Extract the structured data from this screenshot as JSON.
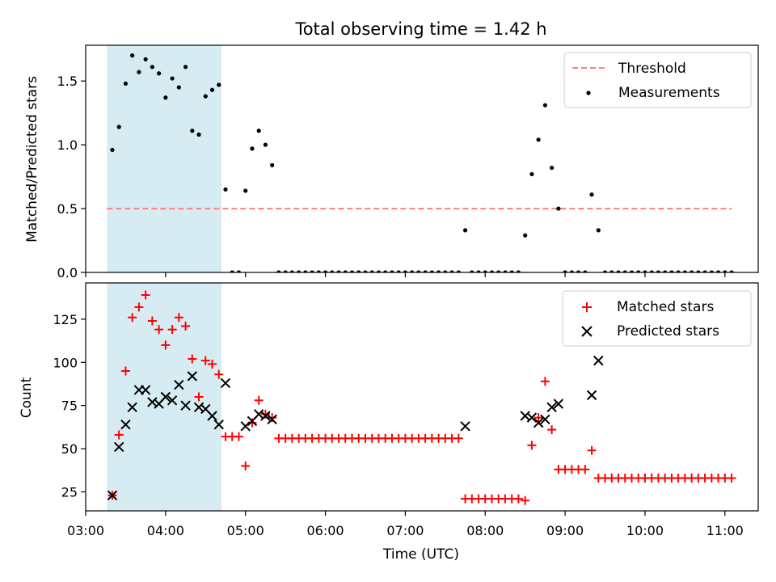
{
  "figure": {
    "title": "Total observing time = 1.42 h"
  },
  "colors": {
    "threshold": "#ff7f7f",
    "measurement": "#000000",
    "matched": "#ff0000",
    "predicted": "#000000",
    "shade": "#add8e6"
  },
  "chart_data": [
    {
      "type": "scatter",
      "title": "Total observing time = 1.42 h",
      "xlabel": "",
      "ylabel": "Matched/Predicted stars",
      "xlim": [
        "03:00",
        "11:25"
      ],
      "ylim": [
        0,
        1.78
      ],
      "yticks": [
        "0.0",
        "0.5",
        "1.0",
        "1.5"
      ],
      "legend": {
        "position": "upper right"
      },
      "shaded_interval": {
        "x": [
          "03:16",
          "04:42"
        ]
      },
      "threshold": {
        "name": "Threshold",
        "y": 0.5,
        "x": [
          "03:16",
          "11:05"
        ],
        "style": "dashed"
      },
      "series": [
        {
          "name": "Measurements",
          "marker": "dot",
          "points": [
            [
              "03:20",
              0.96
            ],
            [
              "03:25",
              1.14
            ],
            [
              "03:30",
              1.48
            ],
            [
              "03:35",
              1.7
            ],
            [
              "03:40",
              1.57
            ],
            [
              "03:45",
              1.67
            ],
            [
              "03:50",
              1.61
            ],
            [
              "03:55",
              1.56
            ],
            [
              "04:00",
              1.37
            ],
            [
              "04:05",
              1.52
            ],
            [
              "04:10",
              1.45
            ],
            [
              "04:15",
              1.61
            ],
            [
              "04:20",
              1.11
            ],
            [
              "04:25",
              1.08
            ],
            [
              "04:30",
              1.38
            ],
            [
              "04:35",
              1.43
            ],
            [
              "04:40",
              1.47
            ],
            [
              "04:45",
              0.65
            ],
            [
              "04:50",
              0
            ],
            [
              "04:55",
              0
            ],
            [
              "05:00",
              0.64
            ],
            [
              "05:05",
              0.97
            ],
            [
              "05:10",
              1.11
            ],
            [
              "05:15",
              1.0
            ],
            [
              "05:20",
              0.84
            ],
            [
              "05:25",
              0
            ],
            [
              "05:30",
              0
            ],
            [
              "05:35",
              0
            ],
            [
              "05:40",
              0
            ],
            [
              "05:45",
              0
            ],
            [
              "05:50",
              0
            ],
            [
              "05:55",
              0
            ],
            [
              "06:00",
              0
            ],
            [
              "06:05",
              0
            ],
            [
              "06:10",
              0
            ],
            [
              "06:15",
              0
            ],
            [
              "06:20",
              0
            ],
            [
              "06:25",
              0
            ],
            [
              "06:30",
              0
            ],
            [
              "06:35",
              0
            ],
            [
              "06:40",
              0
            ],
            [
              "06:45",
              0
            ],
            [
              "06:50",
              0
            ],
            [
              "06:55",
              0
            ],
            [
              "07:00",
              0
            ],
            [
              "07:05",
              0
            ],
            [
              "07:10",
              0
            ],
            [
              "07:15",
              0
            ],
            [
              "07:20",
              0
            ],
            [
              "07:25",
              0
            ],
            [
              "07:30",
              0
            ],
            [
              "07:35",
              0
            ],
            [
              "07:40",
              0
            ],
            [
              "07:45",
              0.33
            ],
            [
              "07:50",
              0
            ],
            [
              "07:55",
              0
            ],
            [
              "08:00",
              0
            ],
            [
              "08:05",
              0
            ],
            [
              "08:10",
              0
            ],
            [
              "08:15",
              0
            ],
            [
              "08:20",
              0
            ],
            [
              "08:25",
              0
            ],
            [
              "08:30",
              0.29
            ],
            [
              "08:35",
              0.77
            ],
            [
              "08:40",
              1.04
            ],
            [
              "08:45",
              1.31
            ],
            [
              "08:50",
              0.82
            ],
            [
              "08:55",
              0.5
            ],
            [
              "09:00",
              0
            ],
            [
              "09:05",
              0
            ],
            [
              "09:10",
              0
            ],
            [
              "09:15",
              0
            ],
            [
              "09:20",
              0.61
            ],
            [
              "09:25",
              0.33
            ],
            [
              "09:30",
              0
            ],
            [
              "09:35",
              0
            ],
            [
              "09:40",
              0
            ],
            [
              "09:45",
              0
            ],
            [
              "09:50",
              0
            ],
            [
              "09:55",
              0
            ],
            [
              "10:00",
              0
            ],
            [
              "10:05",
              0
            ],
            [
              "10:10",
              0
            ],
            [
              "10:15",
              0
            ],
            [
              "10:20",
              0
            ],
            [
              "10:25",
              0
            ],
            [
              "10:30",
              0
            ],
            [
              "10:35",
              0
            ],
            [
              "10:40",
              0
            ],
            [
              "10:45",
              0
            ],
            [
              "10:50",
              0
            ],
            [
              "10:55",
              0
            ],
            [
              "11:00",
              0
            ],
            [
              "11:05",
              0
            ]
          ]
        }
      ]
    },
    {
      "type": "scatter",
      "title": "",
      "xlabel": "Time (UTC)",
      "ylabel": "Count",
      "xlim": [
        "03:00",
        "11:25"
      ],
      "ylim": [
        14,
        146
      ],
      "xticks": [
        "03:00",
        "04:00",
        "05:00",
        "06:00",
        "07:00",
        "08:00",
        "09:00",
        "10:00",
        "11:00"
      ],
      "yticks": [
        "25",
        "50",
        "75",
        "100",
        "125"
      ],
      "legend": {
        "position": "upper right"
      },
      "shaded_interval": {
        "x": [
          "03:16",
          "04:42"
        ]
      },
      "series": [
        {
          "name": "Matched stars",
          "marker": "plus",
          "points": [
            [
              "03:20",
              23
            ],
            [
              "03:25",
              58
            ],
            [
              "03:30",
              95
            ],
            [
              "03:35",
              126
            ],
            [
              "03:40",
              132
            ],
            [
              "03:45",
              139
            ],
            [
              "03:50",
              124
            ],
            [
              "03:55",
              119
            ],
            [
              "04:00",
              110
            ],
            [
              "04:05",
              119
            ],
            [
              "04:10",
              126
            ],
            [
              "04:15",
              121
            ],
            [
              "04:20",
              102
            ],
            [
              "04:25",
              80
            ],
            [
              "04:30",
              101
            ],
            [
              "04:35",
              99
            ],
            [
              "04:40",
              93
            ],
            [
              "04:45",
              57
            ],
            [
              "04:50",
              57
            ],
            [
              "04:55",
              57
            ],
            [
              "05:00",
              40
            ],
            [
              "05:05",
              65
            ],
            [
              "05:10",
              78
            ],
            [
              "05:15",
              70
            ],
            [
              "05:20",
              68
            ],
            [
              "05:25",
              56
            ],
            [
              "05:30",
              56
            ],
            [
              "05:35",
              56
            ],
            [
              "05:40",
              56
            ],
            [
              "05:45",
              56
            ],
            [
              "05:50",
              56
            ],
            [
              "05:55",
              56
            ],
            [
              "06:00",
              56
            ],
            [
              "06:05",
              56
            ],
            [
              "06:10",
              56
            ],
            [
              "06:15",
              56
            ],
            [
              "06:20",
              56
            ],
            [
              "06:25",
              56
            ],
            [
              "06:30",
              56
            ],
            [
              "06:35",
              56
            ],
            [
              "06:40",
              56
            ],
            [
              "06:45",
              56
            ],
            [
              "06:50",
              56
            ],
            [
              "06:55",
              56
            ],
            [
              "07:00",
              56
            ],
            [
              "07:05",
              56
            ],
            [
              "07:10",
              56
            ],
            [
              "07:15",
              56
            ],
            [
              "07:20",
              56
            ],
            [
              "07:25",
              56
            ],
            [
              "07:30",
              56
            ],
            [
              "07:35",
              56
            ],
            [
              "07:40",
              56
            ],
            [
              "07:45",
              21
            ],
            [
              "07:50",
              21
            ],
            [
              "07:55",
              21
            ],
            [
              "08:00",
              21
            ],
            [
              "08:05",
              21
            ],
            [
              "08:10",
              21
            ],
            [
              "08:15",
              21
            ],
            [
              "08:20",
              21
            ],
            [
              "08:25",
              21
            ],
            [
              "08:30",
              20
            ],
            [
              "08:35",
              52
            ],
            [
              "08:40",
              68
            ],
            [
              "08:45",
              89
            ],
            [
              "08:50",
              61
            ],
            [
              "08:55",
              38
            ],
            [
              "09:00",
              38
            ],
            [
              "09:05",
              38
            ],
            [
              "09:10",
              38
            ],
            [
              "09:15",
              38
            ],
            [
              "09:20",
              49
            ],
            [
              "09:25",
              33
            ],
            [
              "09:30",
              33
            ],
            [
              "09:35",
              33
            ],
            [
              "09:40",
              33
            ],
            [
              "09:45",
              33
            ],
            [
              "09:50",
              33
            ],
            [
              "09:55",
              33
            ],
            [
              "10:00",
              33
            ],
            [
              "10:05",
              33
            ],
            [
              "10:10",
              33
            ],
            [
              "10:15",
              33
            ],
            [
              "10:20",
              33
            ],
            [
              "10:25",
              33
            ],
            [
              "10:30",
              33
            ],
            [
              "10:35",
              33
            ],
            [
              "10:40",
              33
            ],
            [
              "10:45",
              33
            ],
            [
              "10:50",
              33
            ],
            [
              "10:55",
              33
            ],
            [
              "11:00",
              33
            ],
            [
              "11:05",
              33
            ]
          ]
        },
        {
          "name": "Predicted stars",
          "marker": "x",
          "points": [
            [
              "03:20",
              23
            ],
            [
              "03:25",
              51
            ],
            [
              "03:30",
              64
            ],
            [
              "03:35",
              74
            ],
            [
              "03:40",
              84
            ],
            [
              "03:45",
              84
            ],
            [
              "03:50",
              77
            ],
            [
              "03:55",
              76
            ],
            [
              "04:00",
              80
            ],
            [
              "04:05",
              78
            ],
            [
              "04:10",
              87
            ],
            [
              "04:15",
              75
            ],
            [
              "04:20",
              92
            ],
            [
              "04:25",
              74
            ],
            [
              "04:30",
              73
            ],
            [
              "04:35",
              69
            ],
            [
              "04:40",
              64
            ],
            [
              "04:45",
              88
            ],
            [
              "05:00",
              63
            ],
            [
              "05:05",
              66
            ],
            [
              "05:10",
              70
            ],
            [
              "05:15",
              69
            ],
            [
              "05:20",
              67
            ],
            [
              "07:45",
              63
            ],
            [
              "08:30",
              69
            ],
            [
              "08:35",
              68
            ],
            [
              "08:40",
              65
            ],
            [
              "08:45",
              67
            ],
            [
              "08:50",
              74
            ],
            [
              "08:55",
              76
            ],
            [
              "09:20",
              81
            ],
            [
              "09:25",
              101
            ]
          ]
        }
      ]
    }
  ]
}
